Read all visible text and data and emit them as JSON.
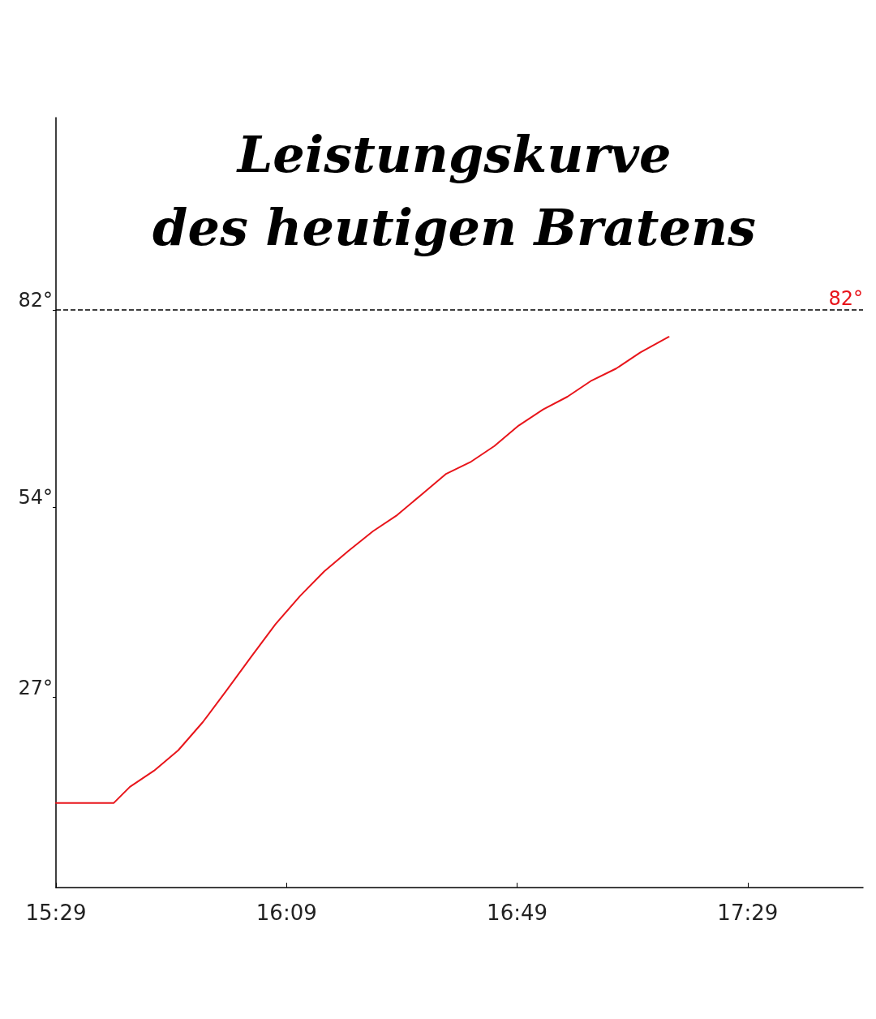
{
  "chart_data": {
    "type": "line",
    "title": "Leistungskurve\ndes heutigen Bratens",
    "x": [
      15.4833,
      15.65,
      15.697,
      15.767,
      15.837,
      15.908,
      15.978,
      16.048,
      16.118,
      16.189,
      16.259,
      16.329,
      16.4,
      16.47,
      16.54,
      16.61,
      16.681,
      16.751,
      16.821,
      16.892,
      16.962,
      17.032,
      17.103,
      17.173,
      17.255
    ],
    "series": [
      {
        "color": "#e8151b",
        "values": [
          12,
          12,
          14.3,
          16.6,
          19.5,
          23.5,
          28.1,
          32.8,
          37.4,
          41.4,
          44.9,
          47.8,
          50.6,
          52.9,
          55.8,
          58.7,
          60.4,
          62.7,
          65.6,
          67.9,
          69.7,
          72.0,
          73.7,
          76.0,
          78.2
        ]
      }
    ],
    "xlim": [
      15.4833,
      17.8167
    ],
    "xticks": [
      {
        "value": 15.4833,
        "label": "15:29"
      },
      {
        "value": 16.15,
        "label": "16:09"
      },
      {
        "value": 16.8167,
        "label": "16:49"
      },
      {
        "value": 17.4833,
        "label": "17:29"
      }
    ],
    "ylim": [
      0,
      109.33
    ],
    "yticks": [
      {
        "value": 27,
        "label": "27°"
      },
      {
        "value": 54,
        "label": "54°"
      },
      {
        "value": 82,
        "label": "82°"
      }
    ],
    "ref_lines": [
      {
        "axis": "y",
        "value": 82,
        "label": "82°",
        "color": "#000000",
        "line_style": "dashed"
      }
    ],
    "grid": false,
    "marker": "none",
    "line_style": "solid"
  }
}
